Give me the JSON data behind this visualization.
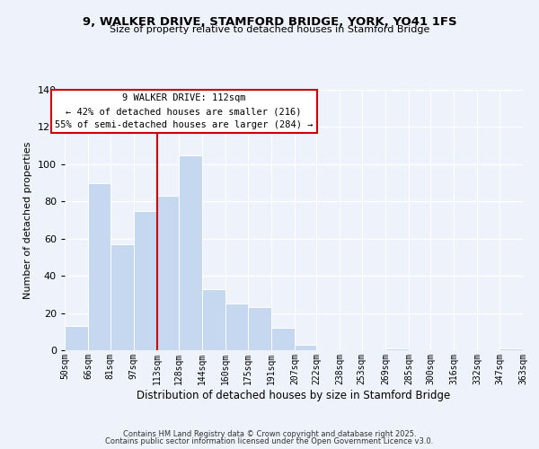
{
  "title": "9, WALKER DRIVE, STAMFORD BRIDGE, YORK, YO41 1FS",
  "subtitle": "Size of property relative to detached houses in Stamford Bridge",
  "xlabel": "Distribution of detached houses by size in Stamford Bridge",
  "ylabel": "Number of detached properties",
  "bar_edges": [
    50,
    66,
    81,
    97,
    113,
    128,
    144,
    160,
    175,
    191,
    207,
    222,
    238,
    253,
    269,
    285,
    300,
    316,
    332,
    347,
    363
  ],
  "bar_heights": [
    13,
    90,
    57,
    75,
    83,
    105,
    33,
    25,
    23,
    12,
    3,
    0,
    0,
    0,
    1,
    0,
    0,
    0,
    0,
    1
  ],
  "bar_color": "#c5d8f0",
  "vline_x": 113,
  "vline_color": "#cc0000",
  "ylim": [
    0,
    140
  ],
  "yticks": [
    0,
    20,
    40,
    60,
    80,
    100,
    120,
    140
  ],
  "annotation_title": "9 WALKER DRIVE: 112sqm",
  "annotation_line1": "← 42% of detached houses are smaller (216)",
  "annotation_line2": "55% of semi-detached houses are larger (284) →",
  "footer1": "Contains HM Land Registry data © Crown copyright and database right 2025.",
  "footer2": "Contains public sector information licensed under the Open Government Licence v3.0.",
  "background_color": "#eef2fb",
  "tick_labels": [
    "50sqm",
    "66sqm",
    "81sqm",
    "97sqm",
    "113sqm",
    "128sqm",
    "144sqm",
    "160sqm",
    "175sqm",
    "191sqm",
    "207sqm",
    "222sqm",
    "238sqm",
    "253sqm",
    "269sqm",
    "285sqm",
    "300sqm",
    "316sqm",
    "332sqm",
    "347sqm",
    "363sqm"
  ]
}
